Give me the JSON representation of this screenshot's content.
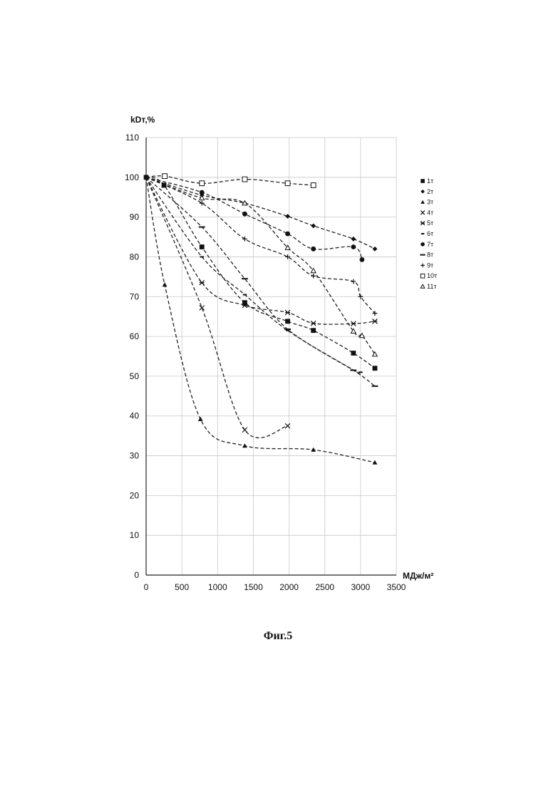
{
  "chart_data": {
    "type": "line",
    "title": "",
    "ylabel": "kDт,%",
    "xlabel": "МДж/м²",
    "xlim": [
      0,
      3500
    ],
    "ylim": [
      0,
      110
    ],
    "x_ticks": [
      0,
      500,
      1000,
      1500,
      2000,
      2500,
      3000,
      3500
    ],
    "y_ticks": [
      0,
      10,
      20,
      30,
      40,
      50,
      60,
      70,
      80,
      90,
      100,
      110
    ],
    "grid": true,
    "legend_position": "right",
    "series": [
      {
        "name": "1т",
        "marker": "square",
        "x": [
          0,
          250,
          780,
          1380,
          1980,
          2340,
          2900,
          3200
        ],
        "y": [
          100,
          98,
          82.5,
          68.5,
          63.8,
          61.5,
          55.8,
          52
        ]
      },
      {
        "name": "2т",
        "marker": "diamond",
        "x": [
          0,
          780,
          1380,
          1980,
          2340,
          2900,
          3200
        ],
        "y": [
          100,
          95.5,
          93.5,
          90.2,
          87.8,
          84.5,
          82
        ]
      },
      {
        "name": "3т",
        "marker": "triangle",
        "x": [
          0,
          260,
          760,
          1380,
          2340,
          3200
        ],
        "y": [
          100,
          73,
          39.2,
          32.5,
          31.5,
          28.3
        ]
      },
      {
        "name": "4т",
        "marker": "x",
        "x": [
          0,
          780,
          1380,
          1980
        ],
        "y": [
          100,
          67.2,
          36.5,
          37.5
        ]
      },
      {
        "name": "5т",
        "marker": "asterisk",
        "x": [
          0,
          780,
          1380,
          1980,
          2340,
          2900,
          3200
        ],
        "y": [
          100,
          73.5,
          67.8,
          66,
          63.3,
          63.2,
          63.8
        ]
      },
      {
        "name": "6т",
        "marker": "short-dash",
        "x": [
          0,
          780,
          1380,
          1980,
          2900,
          3000
        ],
        "y": [
          100,
          80,
          70.5,
          61.5,
          51.5,
          51
        ]
      },
      {
        "name": "7т",
        "marker": "circle",
        "x": [
          0,
          780,
          1380,
          1980,
          2340,
          2900,
          3020
        ],
        "y": [
          100,
          96.2,
          90.8,
          85.8,
          82,
          82.5,
          79.3
        ]
      },
      {
        "name": "8т",
        "marker": "dash",
        "x": [
          0,
          780,
          1380,
          1980,
          2900,
          3200
        ],
        "y": [
          100,
          87.5,
          74.5,
          61.8,
          51.5,
          47.5
        ]
      },
      {
        "name": "9т",
        "marker": "plus",
        "x": [
          0,
          780,
          1380,
          1980,
          2340,
          2900,
          3000,
          3200
        ],
        "y": [
          100,
          93.5,
          84.5,
          80,
          75.2,
          73.8,
          70,
          65.8
        ]
      },
      {
        "name": "10т",
        "marker": "open-square",
        "x": [
          0,
          260,
          780,
          1380,
          1980,
          2340
        ],
        "y": [
          100,
          100.3,
          98.5,
          99.5,
          98.5,
          98
        ]
      },
      {
        "name": "11т",
        "marker": "open-triangle",
        "x": [
          0,
          780,
          1380,
          1980,
          2340,
          2900,
          3020,
          3200
        ],
        "y": [
          100,
          94.8,
          93.5,
          82.3,
          76.5,
          61.3,
          60.2,
          55.5
        ]
      }
    ]
  },
  "caption": "Фиг.5"
}
